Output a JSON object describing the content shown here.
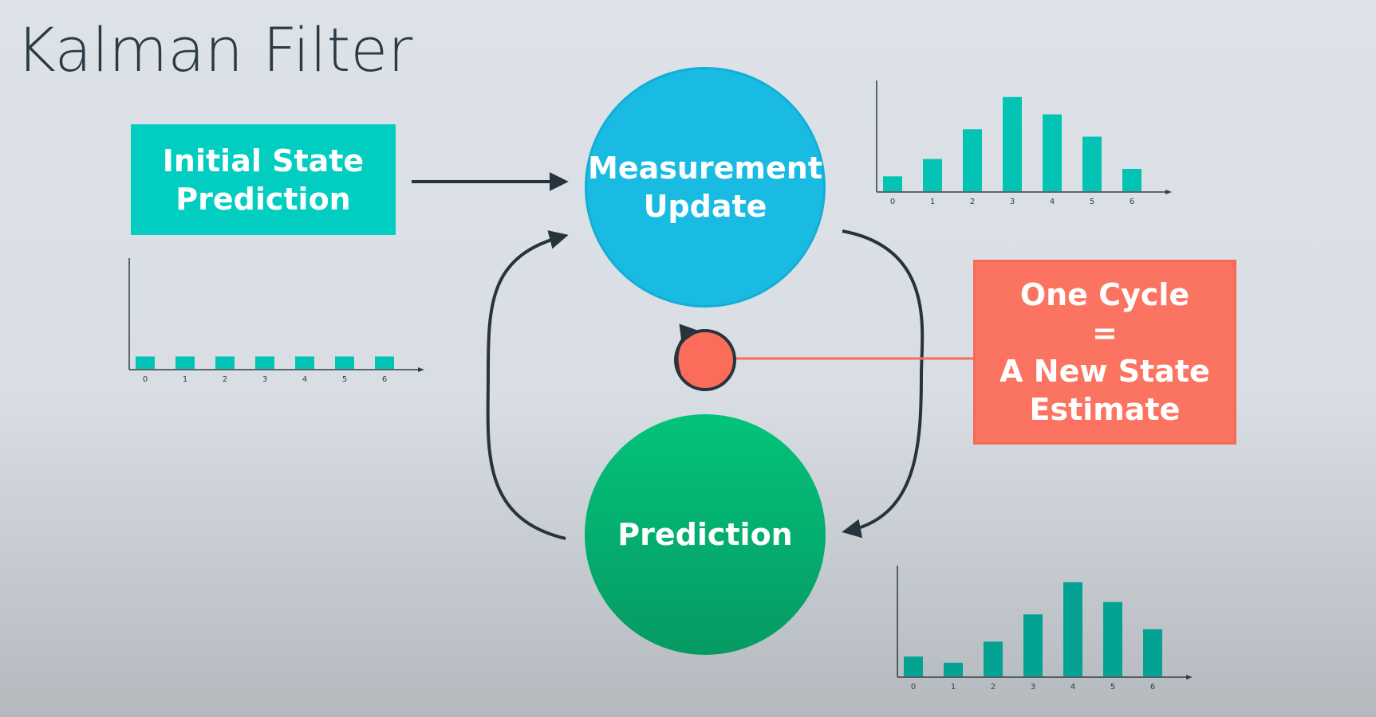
{
  "title": "Kalman Filter",
  "initial_box": {
    "line1": "Initial State",
    "line2": "Prediction"
  },
  "measurement_circle": {
    "line1": "Measurement",
    "line2": "Update"
  },
  "prediction_circle": {
    "label": "Prediction"
  },
  "cycle_box": {
    "line1": "One Cycle",
    "line2": "=",
    "line3": "A New State",
    "line4": "Estimate"
  },
  "colors": {
    "initial_box": "#02cdc1",
    "measurement_circle": "#1abbe2",
    "prediction_circle": "#05b26f",
    "cycle_box": "#fb7461",
    "arrows": "#27333d",
    "bars_teal": "#03c4b4",
    "bars_dark_teal": "#03a293"
  },
  "chart_data": [
    {
      "type": "bar",
      "categories": [
        "0",
        "1",
        "2",
        "3",
        "4",
        "5",
        "6"
      ],
      "values": [
        1,
        1,
        1,
        1,
        1,
        1,
        1
      ],
      "ylim": [
        0,
        9
      ]
    },
    {
      "type": "bar",
      "categories": [
        "0",
        "1",
        "2",
        "3",
        "4",
        "5",
        "6"
      ],
      "values": [
        1.2,
        2.6,
        5.0,
        7.6,
        6.2,
        4.4,
        1.8
      ],
      "ylim": [
        0,
        9
      ]
    },
    {
      "type": "bar",
      "categories": [
        "0",
        "1",
        "2",
        "3",
        "4",
        "5",
        "6"
      ],
      "values": [
        1.6,
        1.1,
        2.8,
        5.0,
        7.6,
        6.0,
        3.8
      ],
      "ylim": [
        0,
        9
      ]
    }
  ]
}
